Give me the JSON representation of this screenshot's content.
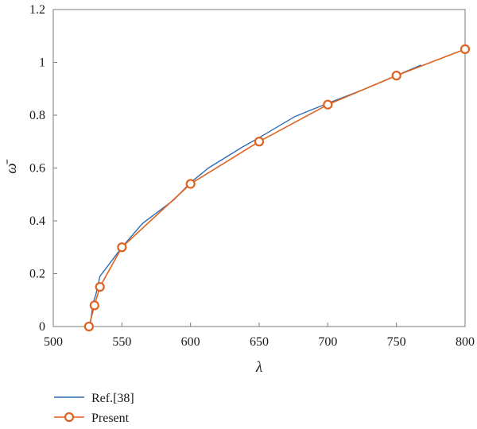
{
  "chart_data": {
    "type": "line",
    "xlabel": "λ",
    "ylabel": "ω̄",
    "xlim": [
      500,
      800
    ],
    "ylim": [
      0,
      1.2
    ],
    "x_ticks": [
      500,
      550,
      600,
      650,
      700,
      750,
      800
    ],
    "y_ticks": [
      0,
      0.2,
      0.4,
      0.6,
      0.8,
      1,
      1.2
    ],
    "y_tick_labels": [
      "0",
      "0.2",
      "0.4",
      "0.6",
      "0.8",
      "1",
      "1.2"
    ],
    "grid": false,
    "legend_position": "bottom-left, below plot",
    "series": [
      {
        "name": "Ref.[38]",
        "color": "#2f6db5",
        "marker": "none",
        "points": [
          [
            526,
            0.0
          ],
          [
            527,
            0.01
          ],
          [
            529,
            0.09
          ],
          [
            531,
            0.12
          ],
          [
            534,
            0.19
          ],
          [
            550,
            0.3
          ],
          [
            565,
            0.39
          ],
          [
            588,
            0.48
          ],
          [
            600,
            0.545
          ],
          [
            613,
            0.6
          ],
          [
            638,
            0.68
          ],
          [
            650,
            0.715
          ],
          [
            676,
            0.795
          ],
          [
            700,
            0.845
          ],
          [
            725,
            0.895
          ],
          [
            750,
            0.95
          ],
          [
            768,
            0.99
          ]
        ]
      },
      {
        "name": "Present",
        "color": "#e0621f",
        "marker": "circle",
        "points": [
          [
            526,
            0.0
          ],
          [
            530,
            0.08
          ],
          [
            534,
            0.15
          ],
          [
            550,
            0.3
          ],
          [
            600,
            0.54
          ],
          [
            650,
            0.7
          ],
          [
            700,
            0.84
          ],
          [
            750,
            0.95
          ],
          [
            800,
            1.05
          ]
        ]
      }
    ]
  }
}
